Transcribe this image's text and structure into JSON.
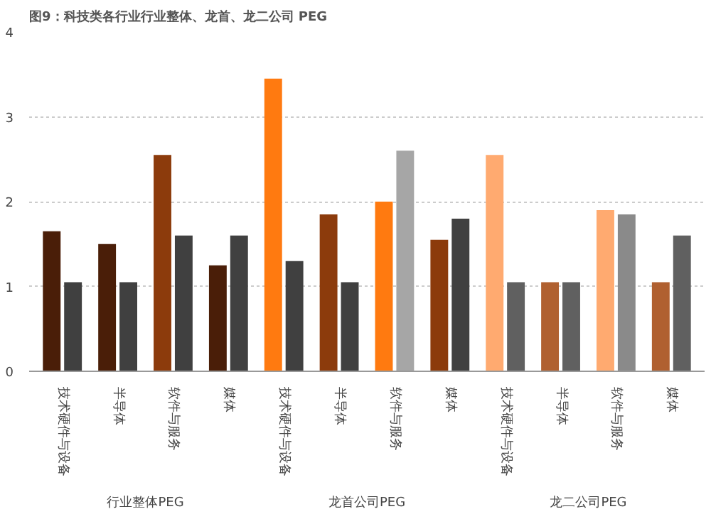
{
  "chart_data": {
    "type": "bar",
    "title": "图9：科技类各行业行业整体、龙首、龙二公司 PEG",
    "categories": [
      "技术硬件与设备",
      "半导体",
      "软件与服务",
      "媒体",
      "技术硬件与设备",
      "半导体",
      "软件与服务",
      "媒体",
      "技术硬件与设备",
      "半导体",
      "软件与服务",
      "媒体"
    ],
    "series": [
      {
        "colors": [
          "#4a1e08",
          "#4a1e08",
          "#8c3b0c",
          "#4a1e08",
          "#ff7a10",
          "#8c3b0c",
          "#ff7a10",
          "#8c3b0c",
          "#ffaa70",
          "#b06030",
          "#ffaa70",
          "#b06030"
        ],
        "values": [
          1.65,
          1.5,
          2.55,
          1.25,
          3.45,
          1.85,
          2.0,
          1.55,
          2.55,
          1.05,
          1.9,
          1.05
        ]
      },
      {
        "colors": [
          "#404040",
          "#404040",
          "#404040",
          "#404040",
          "#404040",
          "#404040",
          "#a6a6a6",
          "#404040",
          "#606060",
          "#606060",
          "#8a8a8a",
          "#606060"
        ],
        "values": [
          1.05,
          1.05,
          1.6,
          1.6,
          1.3,
          1.05,
          2.6,
          1.8,
          1.05,
          1.05,
          1.85,
          1.6
        ]
      }
    ],
    "ylim": [
      0,
      4
    ],
    "yticks": [
      0,
      1,
      2,
      3,
      4
    ],
    "grid": "y",
    "annotations": [
      "行业整体PEG",
      "龙首公司PEG",
      "龙二公司PEG"
    ]
  }
}
